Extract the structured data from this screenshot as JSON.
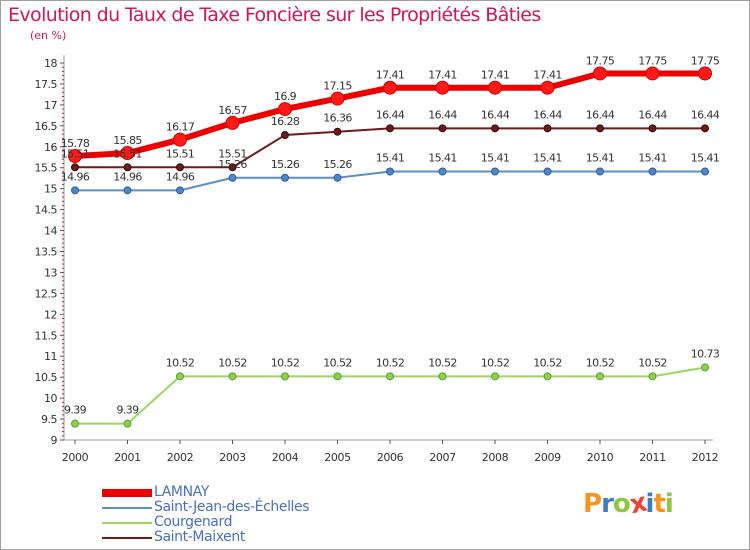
{
  "title": "Evolution du Taux de Taxe Foncière sur les Propriétés Bâties",
  "unit_label": "(en %)",
  "logo": {
    "text": "Proxiti",
    "letters": [
      {
        "ch": "P",
        "color": "#f7941d"
      },
      {
        "ch": "r",
        "color": "#3a7ec0"
      },
      {
        "ch": "o",
        "color": "#8dc63f"
      },
      {
        "ch": "x",
        "color": "#ef4136"
      },
      {
        "ch": "i",
        "color": "#3a7ec0"
      },
      {
        "ch": "t",
        "color": "#f7941d"
      },
      {
        "ch": "i",
        "color": "#8dc63f"
      }
    ]
  },
  "chart_data": {
    "type": "line",
    "title": "Evolution du Taux de Taxe Foncière sur les Propriétés Bâties",
    "ylabel": "(en %)",
    "xlabel": "",
    "ylim": [
      9,
      18
    ],
    "y_ticks": [
      "9",
      "9.5",
      "10",
      "10.5",
      "11",
      "11.5",
      "12",
      "12.5",
      "13",
      "13.5",
      "14",
      "14.5",
      "15",
      "15.5",
      "16",
      "16.5",
      "17",
      "17.5",
      "18"
    ],
    "grid": false,
    "categories": [
      "2000",
      "2001",
      "2002",
      "2003",
      "2004",
      "2005",
      "2006",
      "2007",
      "2008",
      "2009",
      "2010",
      "2011",
      "2012"
    ],
    "series": [
      {
        "name": "LAMNAY",
        "color": "#ee0000",
        "values": [
          15.78,
          15.85,
          16.17,
          16.57,
          16.9,
          17.15,
          17.41,
          17.41,
          17.41,
          17.41,
          17.75,
          17.75,
          17.75
        ],
        "labels": [
          "15.78",
          "15.85",
          "16.17",
          "16.57",
          "16.9",
          "17.15",
          "17.41",
          "17.41",
          "17.41",
          "17.41",
          "17.75",
          "17.75",
          "17.75"
        ]
      },
      {
        "name": "Saint-Jean-des-Échelles",
        "color": "#5b8fc7",
        "values": [
          14.96,
          14.96,
          14.96,
          15.26,
          15.26,
          15.26,
          15.41,
          15.41,
          15.41,
          15.41,
          15.41,
          15.41,
          15.41
        ],
        "labels": [
          "14.96",
          "14.96",
          "14.96",
          "15.26",
          "15.26",
          "15.26",
          "15.41",
          "15.41",
          "15.41",
          "15.41",
          "15.41",
          "15.41",
          "15.41"
        ]
      },
      {
        "name": "Courgenard",
        "color": "#9ad75f",
        "values": [
          9.39,
          9.39,
          10.52,
          10.52,
          10.52,
          10.52,
          10.52,
          10.52,
          10.52,
          10.52,
          10.52,
          10.52,
          10.73
        ],
        "labels": [
          "9.39",
          "9.39",
          "10.52",
          "10.52",
          "10.52",
          "10.52",
          "10.52",
          "10.52",
          "10.52",
          "10.52",
          "10.52",
          "10.52",
          "10.73"
        ]
      },
      {
        "name": "Saint-Maixent",
        "color": "#6e1a1a",
        "values": [
          15.51,
          15.51,
          15.51,
          15.51,
          16.28,
          16.36,
          16.44,
          16.44,
          16.44,
          16.44,
          16.44,
          16.44,
          16.44
        ],
        "labels": [
          "15.51",
          "15.51",
          "15.51",
          "15.51",
          "16.28",
          "16.36",
          "16.44",
          "16.44",
          "16.44",
          "16.44",
          "16.44",
          "16.44",
          "16.44"
        ]
      }
    ],
    "legend_position": "bottom-left"
  }
}
